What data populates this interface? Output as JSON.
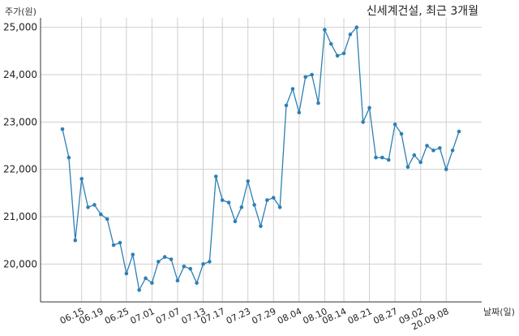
{
  "chart_data": {
    "type": "line",
    "title": "신세계건설, 최근 3개월",
    "ylabel": "주가(원)",
    "xlabel": "날짜(일)",
    "ylim": [
      19200,
      25200
    ],
    "yticks": [
      20000,
      21000,
      22000,
      23000,
      24000,
      25000
    ],
    "ytick_labels": [
      "20,000",
      "21,000",
      "22,000",
      "23,000",
      "24,000",
      "25,000"
    ],
    "x_tick_labels": [
      "06.15",
      "06.19",
      "06.25",
      "07.01",
      "07.07",
      "07.13",
      "07.17",
      "07.23",
      "07.29",
      "08.04",
      "08.10",
      "08.14",
      "08.21",
      "08.27",
      "09.02",
      "20.09.08"
    ],
    "x_tick_index": [
      3,
      6,
      10,
      14,
      18,
      22,
      25,
      29,
      33,
      37,
      41,
      44,
      48,
      52,
      56,
      60
    ],
    "grid": true,
    "color": "#2e7fb5",
    "series": [
      {
        "values": [
          22850,
          22250,
          20500,
          21800,
          21200,
          21250,
          21050,
          20950,
          20400,
          20450,
          19800,
          20200,
          19450,
          19700,
          19600,
          20050,
          20150,
          20100,
          19650,
          19950,
          19900,
          19600,
          20000,
          20050,
          21850,
          21350,
          21300,
          20900,
          21200,
          21750,
          21250,
          20800,
          21350,
          21400,
          21200,
          23350,
          23700,
          23200,
          23950,
          24000,
          23400,
          24950,
          24650,
          24400,
          24450,
          24850,
          25000,
          23000,
          23300,
          22250,
          22250,
          22200,
          22950,
          22750,
          22050,
          22300,
          22150,
          22500,
          22400,
          22450,
          22000,
          22400,
          22800
        ]
      }
    ]
  }
}
